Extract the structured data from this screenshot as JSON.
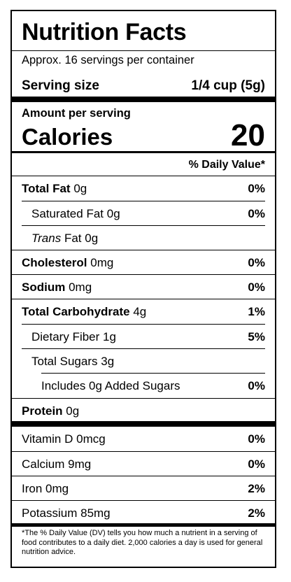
{
  "title": "Nutrition Facts",
  "servings": "Approx. 16 servings per container",
  "serving_size": {
    "label": "Serving size",
    "value": "1/4 cup (5g)"
  },
  "amount_per_serving": "Amount per serving",
  "calories": {
    "label": "Calories",
    "value": "20"
  },
  "daily_value_header": "% Daily Value*",
  "nutrients": [
    {
      "name": "Total Fat",
      "amount": "0g",
      "dv": "0%"
    },
    {
      "name": "Saturated Fat",
      "amount": "0g",
      "dv": "0%"
    },
    {
      "name": "Trans",
      "suffix": "Fat",
      "amount": "0g",
      "dv": ""
    },
    {
      "name": "Cholesterol",
      "amount": "0mg",
      "dv": "0%"
    },
    {
      "name": "Sodium",
      "amount": "0mg",
      "dv": "0%"
    },
    {
      "name": "Total Carbohydrate",
      "amount": "4g",
      "dv": "1%"
    },
    {
      "name": "Dietary Fiber",
      "amount": "1g",
      "dv": "5%"
    },
    {
      "name": "Total Sugars",
      "amount": "3g",
      "dv": ""
    },
    {
      "name": "Includes 0g Added Sugars",
      "amount": "",
      "dv": "0%"
    },
    {
      "name": "Protein",
      "amount": "0g",
      "dv": ""
    }
  ],
  "vitamins": [
    {
      "name": "Vitamin D",
      "amount": "0mcg",
      "dv": "0%"
    },
    {
      "name": "Calcium",
      "amount": "9mg",
      "dv": "0%"
    },
    {
      "name": "Iron",
      "amount": "0mg",
      "dv": "2%"
    },
    {
      "name": "Potassium",
      "amount": "85mg",
      "dv": "2%"
    }
  ],
  "footnote": "*The % Daily Value (DV) tells you how much a nutrient in a serving of food contributes to a daily diet. 2,000 calories a day is used for general nutrition advice."
}
